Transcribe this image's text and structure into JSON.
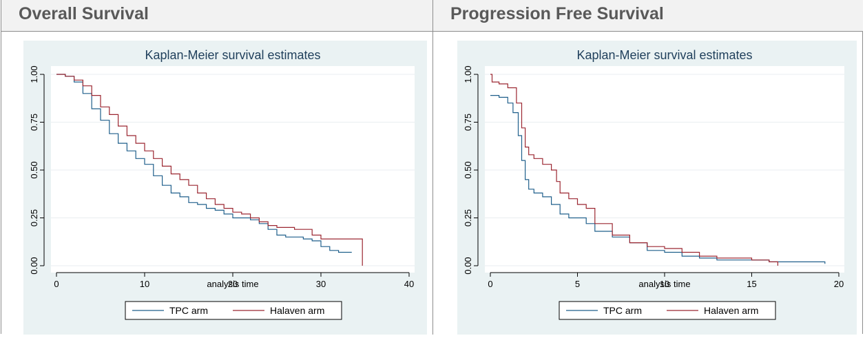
{
  "headers": {
    "left": "Overall Survival",
    "right": "Progression Free Survival"
  },
  "colors": {
    "tpc": "#1f5f8b",
    "halaven": "#9b2630",
    "panel_bg": "#eaf2f3",
    "grid": "#f4f7f8"
  },
  "chart_data": [
    {
      "type": "line",
      "step": true,
      "title": "Kaplan-Meier survival estimates",
      "xlabel": "analysis time",
      "ylabel": "",
      "xlim": [
        0,
        40
      ],
      "ylim": [
        0,
        1
      ],
      "x_ticks": [
        "0",
        "10",
        "20",
        "30",
        "40"
      ],
      "y_ticks": [
        "0.00",
        "0.25",
        "0.50",
        "0.75",
        "1.00"
      ],
      "grid": true,
      "legend_position": "bottom",
      "series": [
        {
          "name": "TPC arm",
          "color": "#1f5f8b",
          "x": [
            0,
            1,
            2,
            3,
            4,
            5,
            6,
            7,
            8,
            9,
            10,
            11,
            12,
            13,
            14,
            15,
            16,
            17,
            18,
            19,
            20,
            21,
            22,
            23,
            24,
            25,
            26,
            27,
            28,
            29,
            30,
            31,
            32,
            33.5
          ],
          "y": [
            1.0,
            0.99,
            0.96,
            0.9,
            0.82,
            0.76,
            0.69,
            0.64,
            0.6,
            0.56,
            0.53,
            0.47,
            0.42,
            0.38,
            0.36,
            0.33,
            0.32,
            0.3,
            0.29,
            0.27,
            0.25,
            0.25,
            0.24,
            0.22,
            0.19,
            0.16,
            0.15,
            0.15,
            0.14,
            0.13,
            0.1,
            0.08,
            0.07,
            0.07
          ]
        },
        {
          "name": "Halaven arm",
          "color": "#9b2630",
          "x": [
            0,
            1,
            2,
            3,
            4,
            5,
            6,
            7,
            8,
            9,
            10,
            11,
            12,
            13,
            14,
            15,
            16,
            17,
            18,
            19,
            20,
            21,
            22,
            23,
            24,
            25,
            26,
            27,
            28,
            29,
            30,
            31,
            32,
            33,
            34,
            34.7
          ],
          "y": [
            1.0,
            0.99,
            0.97,
            0.94,
            0.89,
            0.83,
            0.79,
            0.73,
            0.68,
            0.64,
            0.6,
            0.56,
            0.52,
            0.48,
            0.45,
            0.42,
            0.38,
            0.35,
            0.32,
            0.3,
            0.28,
            0.27,
            0.25,
            0.23,
            0.21,
            0.2,
            0.2,
            0.19,
            0.19,
            0.16,
            0.14,
            0.14,
            0.14,
            0.14,
            0.14,
            0.0
          ]
        }
      ]
    },
    {
      "type": "line",
      "step": true,
      "title": "Kaplan-Meier survival estimates",
      "xlabel": "analysis time",
      "ylabel": "",
      "xlim": [
        0,
        20
      ],
      "ylim": [
        0,
        1
      ],
      "x_ticks": [
        "0",
        "5",
        "10",
        "15",
        "20"
      ],
      "y_ticks": [
        "0.00",
        "0.25",
        "0.50",
        "0.75",
        "1.00"
      ],
      "grid": true,
      "legend_position": "bottom",
      "series": [
        {
          "name": "TPC arm",
          "color": "#1f5f8b",
          "x": [
            0,
            0.5,
            1.0,
            1.3,
            1.6,
            1.8,
            2.0,
            2.2,
            2.5,
            3.0,
            3.5,
            4.0,
            4.5,
            5.0,
            5.5,
            6.0,
            7.0,
            8.0,
            9.0,
            10.0,
            11.0,
            12.0,
            13.0,
            14.0,
            15.0,
            16.0,
            17.0,
            18.0,
            19.2
          ],
          "y": [
            0.89,
            0.88,
            0.85,
            0.8,
            0.68,
            0.55,
            0.45,
            0.4,
            0.38,
            0.36,
            0.32,
            0.27,
            0.25,
            0.25,
            0.22,
            0.18,
            0.15,
            0.12,
            0.08,
            0.07,
            0.05,
            0.04,
            0.03,
            0.03,
            0.03,
            0.02,
            0.02,
            0.02,
            0.01
          ]
        },
        {
          "name": "Halaven arm",
          "color": "#9b2630",
          "x": [
            0,
            0.1,
            0.5,
            1.0,
            1.5,
            1.8,
            2.0,
            2.2,
            2.5,
            3.0,
            3.5,
            3.8,
            4.0,
            4.5,
            5.0,
            5.5,
            6.0,
            7.0,
            8.0,
            9.0,
            10.0,
            11.0,
            12.0,
            13.0,
            14.0,
            15.0,
            16.0,
            16.5
          ],
          "y": [
            1.0,
            0.96,
            0.95,
            0.93,
            0.85,
            0.72,
            0.62,
            0.58,
            0.56,
            0.53,
            0.5,
            0.44,
            0.38,
            0.35,
            0.32,
            0.3,
            0.22,
            0.16,
            0.12,
            0.1,
            0.09,
            0.07,
            0.05,
            0.04,
            0.04,
            0.03,
            0.02,
            0.0
          ]
        }
      ]
    }
  ]
}
